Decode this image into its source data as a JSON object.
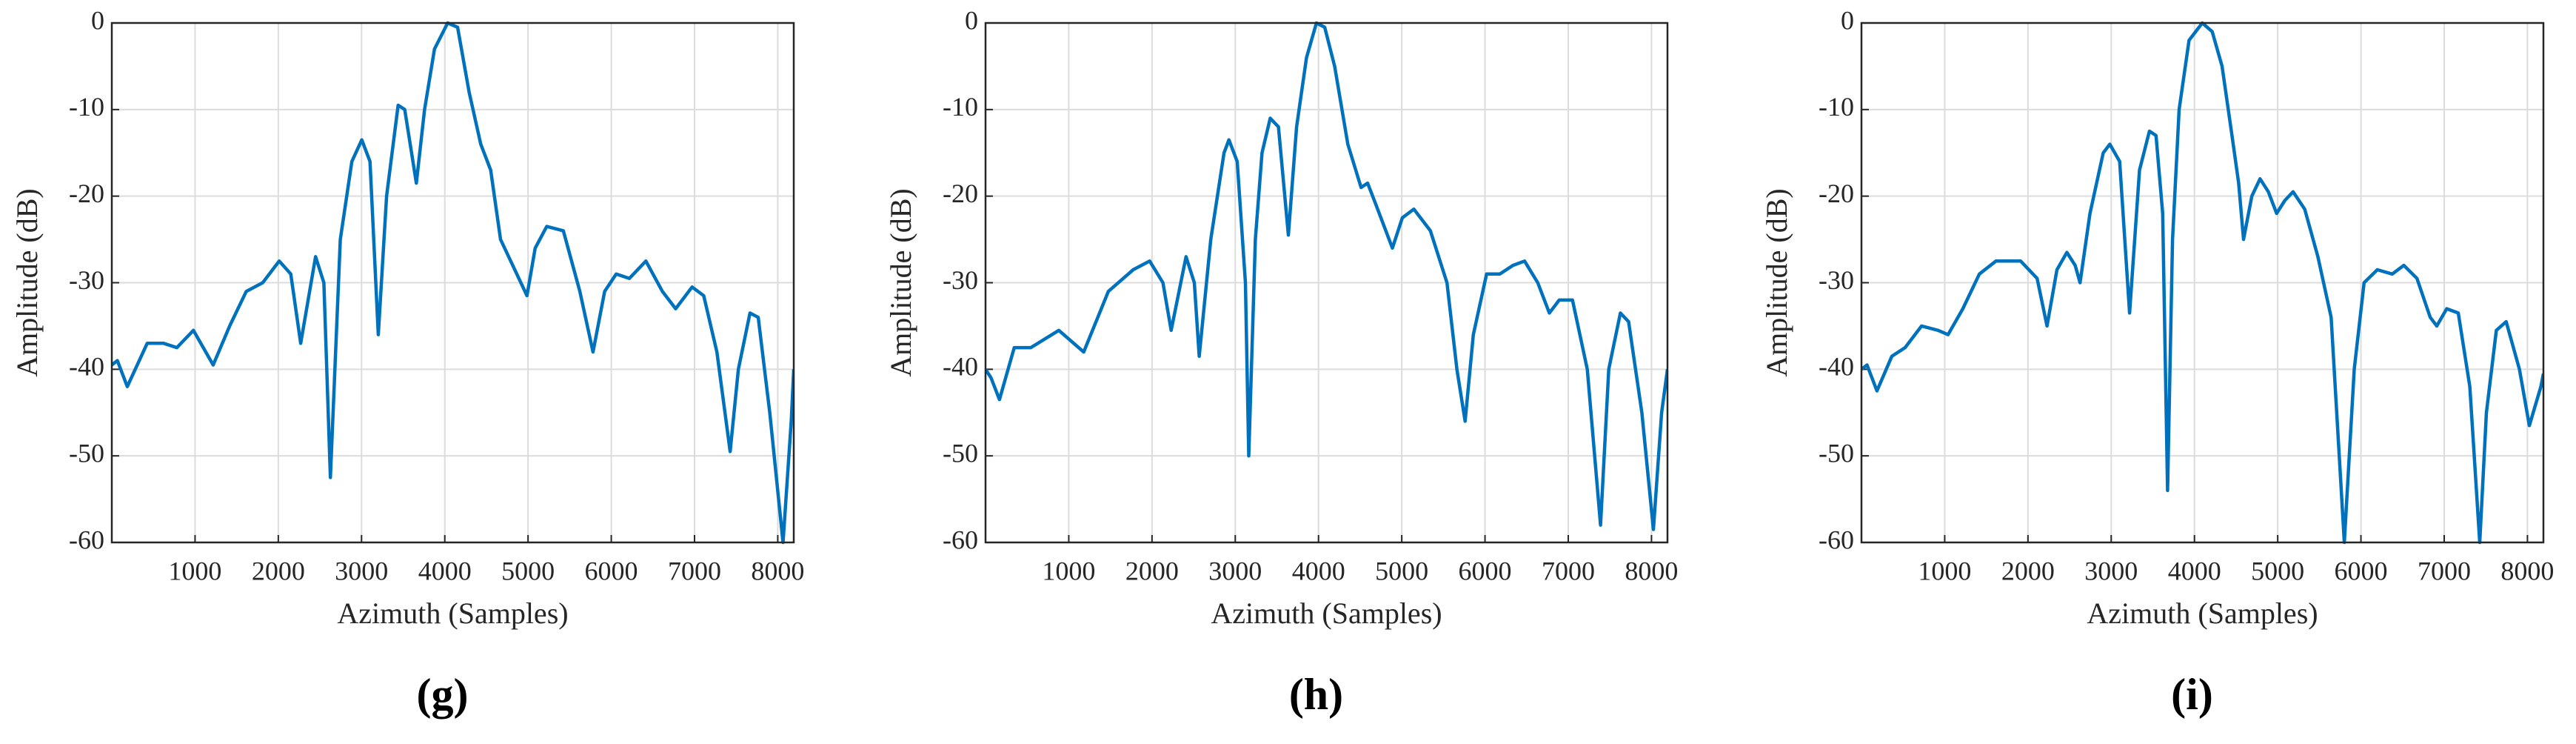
{
  "chart_data": [
    {
      "type": "line",
      "caption": "(g)",
      "x_label": "Azimuth (Samples)",
      "y_label": "Amplitude (dB)",
      "xlim": [
        0,
        8192
      ],
      "ylim": [
        -60,
        0
      ],
      "xticks": [
        1000,
        2000,
        3000,
        4000,
        5000,
        6000,
        7000,
        8000
      ],
      "yticks": [
        -60,
        -50,
        -40,
        -30,
        -20,
        -10,
        0
      ],
      "grid": true,
      "x": [
        0,
        67,
        186,
        425,
        623,
        782,
        980,
        1218,
        1416,
        1615,
        1813,
        2011,
        2150,
        2269,
        2448,
        2547,
        2626,
        2745,
        2884,
        3003,
        3102,
        3201,
        3301,
        3440,
        3519,
        3658,
        3757,
        3876,
        4035,
        4154,
        4293,
        4432,
        4551,
        4670,
        4987,
        5086,
        5225,
        5424,
        5622,
        5781,
        5920,
        6059,
        6217,
        6416,
        6614,
        6773,
        6971,
        7110,
        7269,
        7428,
        7527,
        7666,
        7765,
        7904,
        8063,
        8162,
        8192
      ],
      "series": [
        {
          "color": "#0072bd",
          "values": [
            -39.5,
            -39,
            -42,
            -37,
            -37,
            -37.5,
            -35.5,
            -39.5,
            -35,
            -31,
            -30,
            -27.5,
            -29,
            -37,
            -27,
            -30,
            -52.5,
            -25,
            -16,
            -13.5,
            -16,
            -36,
            -20,
            -9.5,
            -10,
            -18.5,
            -10,
            -3,
            0,
            -0.5,
            -8,
            -14,
            -17,
            -25,
            -31.5,
            -26,
            -23.5,
            -24,
            -31,
            -38,
            -31,
            -29,
            -29.5,
            -27.5,
            -31,
            -33,
            -30.5,
            -31.5,
            -38,
            -49.5,
            -40,
            -33.5,
            -34,
            -45,
            -60,
            -46,
            -40
          ]
        }
      ]
    },
    {
      "type": "line",
      "caption": "(h)",
      "x_label": "Azimuth (Samples)",
      "y_label": "Amplitude (dB)",
      "xlim": [
        0,
        8192
      ],
      "ylim": [
        -60,
        0
      ],
      "xticks": [
        1000,
        2000,
        3000,
        4000,
        5000,
        6000,
        7000,
        8000
      ],
      "yticks": [
        -60,
        -50,
        -40,
        -30,
        -20,
        -10,
        0
      ],
      "grid": true,
      "x": [
        0,
        67,
        167,
        345,
        544,
        881,
        1179,
        1476,
        1774,
        1972,
        2131,
        2230,
        2409,
        2508,
        2567,
        2706,
        2865,
        2924,
        3023,
        3122,
        3162,
        3241,
        3321,
        3420,
        3519,
        3638,
        3737,
        3856,
        3975,
        4075,
        4194,
        4352,
        4511,
        4590,
        4690,
        4888,
        5007,
        5146,
        5344,
        5543,
        5662,
        5761,
        5860,
        6019,
        6178,
        6336,
        6475,
        6634,
        6773,
        6892,
        7051,
        7229,
        7388,
        7487,
        7626,
        7725,
        7884,
        8023,
        8122,
        8192
      ],
      "series": [
        {
          "color": "#0072bd",
          "values": [
            -40,
            -41,
            -43.5,
            -37.5,
            -37.5,
            -35.5,
            -38,
            -31,
            -28.5,
            -27.5,
            -30,
            -35.5,
            -27,
            -30,
            -38.5,
            -25,
            -15,
            -13.5,
            -16,
            -30,
            -50,
            -25,
            -15,
            -11,
            -12,
            -24.5,
            -12,
            -4,
            0,
            -0.5,
            -5,
            -14,
            -19,
            -18.5,
            -21,
            -26,
            -22.5,
            -21.5,
            -24,
            -30,
            -40,
            -46,
            -36,
            -29,
            -29,
            -28,
            -27.5,
            -30,
            -33.5,
            -32,
            -32,
            -40,
            -58,
            -40,
            -33.5,
            -34.5,
            -45,
            -58.5,
            -45,
            -40
          ]
        }
      ]
    },
    {
      "type": "line",
      "caption": "(i)",
      "x_label": "Azimuth (Samples)",
      "y_label": "Amplitude (dB)",
      "xlim": [
        0,
        8192
      ],
      "ylim": [
        -60,
        0
      ],
      "xticks": [
        1000,
        2000,
        3000,
        4000,
        5000,
        6000,
        7000,
        8000
      ],
      "yticks": [
        -60,
        -50,
        -40,
        -30,
        -20,
        -10,
        0
      ],
      "grid": true,
      "x": [
        0,
        67,
        186,
        365,
        524,
        722,
        921,
        1040,
        1218,
        1416,
        1615,
        1912,
        2110,
        2229,
        2348,
        2467,
        2567,
        2626,
        2745,
        2904,
        2983,
        3102,
        3221,
        3340,
        3459,
        3538,
        3618,
        3677,
        3737,
        3816,
        3935,
        4094,
        4213,
        4332,
        4451,
        4531,
        4590,
        4689,
        4788,
        4888,
        4987,
        5086,
        5185,
        5324,
        5483,
        5642,
        5800,
        5919,
        6038,
        6197,
        6376,
        6515,
        6673,
        6832,
        6911,
        7030,
        7169,
        7308,
        7427,
        7507,
        7626,
        7745,
        7904,
        8023,
        8162,
        8192
      ],
      "series": [
        {
          "color": "#0072bd",
          "values": [
            -40,
            -39.5,
            -42.5,
            -38.5,
            -37.5,
            -35,
            -35.5,
            -36,
            -33,
            -29,
            -27.5,
            -27.5,
            -29.5,
            -35,
            -28.5,
            -26.5,
            -28,
            -30,
            -22,
            -15,
            -14,
            -16,
            -33.5,
            -17,
            -12.5,
            -13,
            -22,
            -54,
            -25,
            -10,
            -2,
            0,
            -1,
            -5,
            -13,
            -18.5,
            -25,
            -20,
            -18,
            -19.5,
            -22,
            -20.5,
            -19.5,
            -21.5,
            -27,
            -34,
            -60,
            -40,
            -30,
            -28.5,
            -29,
            -28,
            -29.5,
            -34,
            -35,
            -33,
            -33.5,
            -42,
            -60,
            -45,
            -35.5,
            -34.5,
            -40,
            -46.5,
            -42,
            -40.5
          ]
        }
      ]
    }
  ]
}
